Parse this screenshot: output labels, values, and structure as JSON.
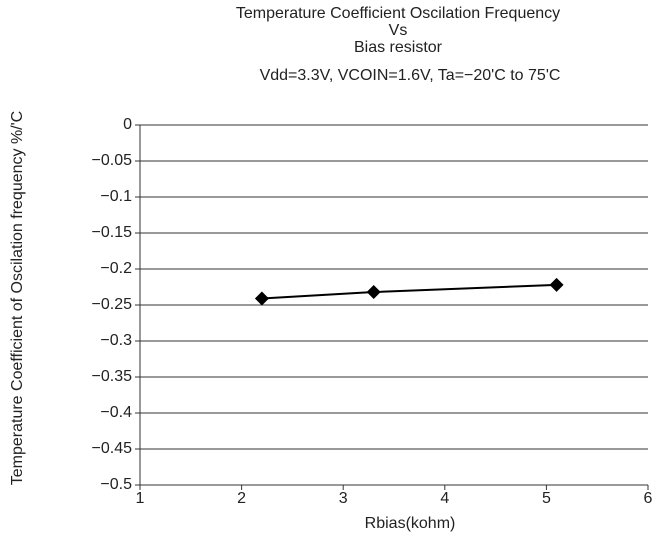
{
  "chart_data": {
    "type": "line",
    "title": [
      "Temperature Coefficient Oscilation Frequency",
      "Vs",
      "Bias resistor"
    ],
    "subtitle": "Vdd=3.3V, VCOIN=1.6V, Ta=−20'C to 75'C",
    "x_label": "Rbias(kohm)",
    "y_label": "Temperature Coefficient of  Oscilation frequency %/'C",
    "x": [
      2.2,
      3.3,
      5.1
    ],
    "series": [
      {
        "name": null,
        "color": "#000000",
        "values": [
          -0.241,
          -0.232,
          -0.222
        ]
      }
    ],
    "xlim": [
      1,
      6
    ],
    "xticks": [
      1,
      2,
      3,
      4,
      5,
      6
    ],
    "ylim": [
      -0.5,
      0
    ],
    "yticks": [
      0,
      {
        "value": -0.05,
        "label": "−0.05"
      },
      {
        "value": -0.1,
        "label": "−0.1"
      },
      {
        "value": -0.15,
        "label": "−0.15"
      },
      {
        "value": -0.2,
        "label": "−0.2"
      },
      {
        "value": -0.25,
        "label": "−0.25"
      },
      {
        "value": -0.3,
        "label": "−0.3"
      },
      {
        "value": -0.35,
        "label": "−0.35"
      },
      {
        "value": -0.4,
        "label": "−0.4"
      },
      {
        "value": -0.45,
        "label": "−0.45"
      },
      {
        "value": -0.5,
        "label": "−0.5"
      }
    ],
    "grid": true
  }
}
